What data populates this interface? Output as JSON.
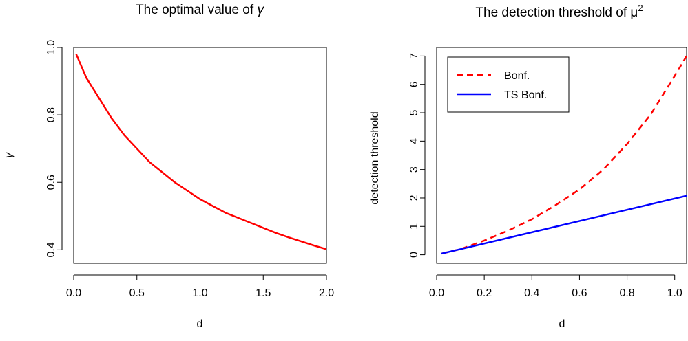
{
  "chart_data": [
    {
      "type": "line",
      "title": "The optimal value of γ",
      "title_prefix": "The optimal value of ",
      "title_symbol": "γ",
      "xlabel": "d",
      "ylabel": "γ",
      "xlim": [
        0,
        2.0
      ],
      "ylim": [
        0.36,
        1.0
      ],
      "xticks": [
        "0.0",
        "0.5",
        "1.0",
        "1.5",
        "2.0"
      ],
      "yticks": [
        "0.4",
        "0.6",
        "0.8",
        "1.0"
      ],
      "grid": false,
      "series": [
        {
          "color": "#ff0000",
          "line_style": "solid",
          "x": [
            0.02,
            0.1,
            0.2,
            0.3,
            0.4,
            0.5,
            0.6,
            0.7,
            0.8,
            0.9,
            1.0,
            1.1,
            1.2,
            1.3,
            1.4,
            1.5,
            1.6,
            1.7,
            1.8,
            1.9,
            2.0
          ],
          "y": [
            0.98,
            0.91,
            0.85,
            0.79,
            0.74,
            0.7,
            0.66,
            0.63,
            0.6,
            0.575,
            0.55,
            0.53,
            0.51,
            0.495,
            0.48,
            0.465,
            0.45,
            0.437,
            0.425,
            0.413,
            0.402
          ]
        }
      ]
    },
    {
      "type": "line",
      "title": "The detection threshold of μ²",
      "title_prefix": "The detection threshold of ",
      "title_symbol": "μ",
      "title_superscript": "2",
      "xlabel": "d",
      "ylabel": "detection threshold",
      "xlim": [
        0,
        1.05
      ],
      "ylim": [
        -0.3,
        7.3
      ],
      "xticks": [
        "0.0",
        "0.2",
        "0.4",
        "0.6",
        "0.8",
        "1.0"
      ],
      "yticks": [
        "0",
        "1",
        "2",
        "3",
        "4",
        "5",
        "6",
        "7"
      ],
      "grid": false,
      "legend_position": "top-left",
      "series": [
        {
          "name": "Bonf.",
          "color": "#ff0000",
          "line_style": "dashed",
          "x": [
            0.02,
            0.1,
            0.2,
            0.3,
            0.4,
            0.5,
            0.6,
            0.7,
            0.8,
            0.9,
            1.0,
            1.05
          ],
          "y": [
            0.04,
            0.2,
            0.5,
            0.85,
            1.25,
            1.75,
            2.3,
            3.0,
            3.9,
            4.95,
            6.3,
            7.0
          ]
        },
        {
          "name": "TS Bonf.",
          "color": "#0000ff",
          "line_style": "solid",
          "x": [
            0.02,
            1.05
          ],
          "y": [
            0.04,
            2.08
          ]
        }
      ]
    }
  ]
}
